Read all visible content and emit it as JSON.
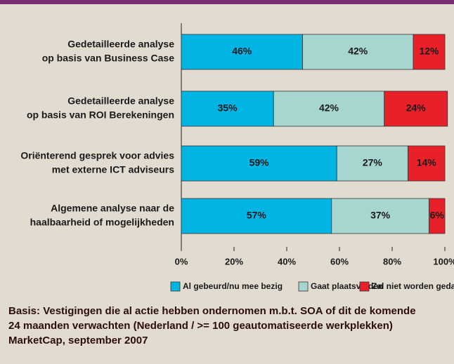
{
  "chart_data": {
    "type": "stacked-barh",
    "categories": [
      [
        "Gedetailleerde analyse",
        "op basis van Business Case"
      ],
      [
        "Gedetailleerde analyse",
        "op basis van ROI Berekeningen"
      ],
      [
        "Oriënterend gesprek voor advies",
        "met externe ICT adviseurs"
      ],
      [
        "Algemene analyse naar de",
        "haalbaarheid of mogelijkheden"
      ]
    ],
    "series": [
      {
        "name": "Al gebeurd/nu mee bezig",
        "color": "#00b4e4",
        "values": [
          46,
          35,
          59,
          57
        ],
        "value_labels": [
          "46%",
          "35%",
          "59%",
          "57%"
        ]
      },
      {
        "name": "Gaat plaatsvinden",
        "color": "#a6d6cf",
        "values": [
          42,
          42,
          27,
          37
        ],
        "value_labels": [
          "42%",
          "42%",
          "27%",
          "37%"
        ]
      },
      {
        "name": "Zal niet worden gedaan",
        "color": "#e8202a",
        "values": [
          12,
          24,
          14,
          6
        ],
        "value_labels": [
          "12%",
          "24%",
          "14%",
          "6%"
        ]
      }
    ],
    "xlim": [
      0,
      100
    ],
    "xticks": [
      {
        "value": 0,
        "label": "0%"
      },
      {
        "value": 20,
        "label": "20%"
      },
      {
        "value": 40,
        "label": "40%"
      },
      {
        "value": 60,
        "label": "60%"
      },
      {
        "value": 80,
        "label": "80%"
      },
      {
        "value": 100,
        "label": "100%"
      }
    ],
    "note": [
      "Basis: Vestigingen die al actie hebben ondernomen m.b.t. SOA of dit de komende",
      "24 maanden verwachten (Nederland / >= 100 geautomatiseerde werkplekken)",
      "MarketCap, september 2007"
    ]
  }
}
